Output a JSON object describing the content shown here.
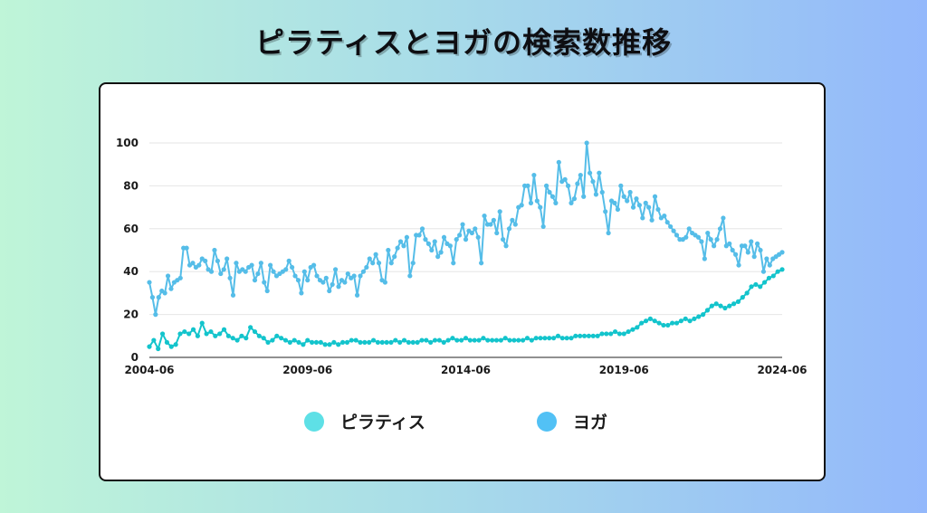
{
  "title": "ピラティスとヨガの検索数推移",
  "colors": {
    "pilates": "#13c4cc",
    "yoga": "#55bde8",
    "legend_pilates": "#5ee0e6",
    "legend_yoga": "#52c1f5"
  },
  "chart_data": {
    "type": "line",
    "title": "ピラティスとヨガの検索数推移",
    "xlabel": "",
    "ylabel": "",
    "ylim": [
      0,
      100
    ],
    "yticks": [
      "0",
      "20",
      "40",
      "60",
      "80",
      "100"
    ],
    "xticks": [
      "2004-06",
      "2009-06",
      "2014-06",
      "2019-06",
      "2024-06"
    ],
    "x_range": [
      "2004-06",
      "2024-06"
    ],
    "legend_position": "bottom",
    "series": [
      {
        "name": "ピラティス",
        "color_key": "pilates",
        "values": [
          5,
          8,
          4,
          11,
          7,
          5,
          6,
          11,
          12,
          11,
          13,
          10,
          16,
          11,
          12,
          10,
          11,
          13,
          10,
          9,
          8,
          10,
          9,
          14,
          12,
          10,
          9,
          7,
          8,
          10,
          9,
          8,
          7,
          8,
          7,
          6,
          8,
          7,
          7,
          7,
          6,
          6,
          7,
          6,
          7,
          7,
          8,
          8,
          7,
          7,
          7,
          8,
          7,
          7,
          7,
          7,
          8,
          7,
          8,
          7,
          7,
          7,
          8,
          8,
          7,
          8,
          8,
          7,
          8,
          9,
          8,
          8,
          9,
          8,
          8,
          8,
          9,
          8,
          8,
          8,
          8,
          9,
          8,
          8,
          8,
          8,
          9,
          8,
          9,
          9,
          9,
          9,
          9,
          10,
          9,
          9,
          9,
          10,
          10,
          10,
          10,
          10,
          10,
          11,
          11,
          11,
          12,
          11,
          11,
          12,
          13,
          14,
          16,
          17,
          18,
          17,
          16,
          15,
          15,
          16,
          16,
          17,
          18,
          17,
          18,
          19,
          20,
          22,
          24,
          25,
          24,
          23,
          24,
          25,
          26,
          28,
          30,
          33,
          34,
          33,
          35,
          37,
          38,
          40,
          41
        ]
      },
      {
        "name": "ヨガ",
        "color_key": "yoga",
        "values": [
          35,
          28,
          20,
          28,
          31,
          30,
          38,
          32,
          35,
          36,
          37,
          51,
          51,
          43,
          44,
          42,
          43,
          46,
          45,
          41,
          40,
          50,
          45,
          39,
          41,
          46,
          37,
          29,
          44,
          40,
          41,
          40,
          42,
          43,
          36,
          39,
          44,
          35,
          31,
          43,
          40,
          38,
          39,
          40,
          41,
          45,
          42,
          38,
          36,
          30,
          40,
          36,
          42,
          43,
          38,
          36,
          35,
          37,
          31,
          34,
          41,
          33,
          36,
          35,
          39,
          37,
          38,
          29,
          38,
          40,
          42,
          46,
          44,
          48,
          44,
          36,
          35,
          50,
          44,
          47,
          51,
          54,
          52,
          56,
          38,
          44,
          57,
          57,
          60,
          55,
          53,
          50,
          54,
          47,
          49,
          56,
          53,
          52,
          44,
          55,
          57,
          62,
          55,
          59,
          58,
          60,
          56,
          44,
          66,
          62,
          62,
          64,
          58,
          68,
          55,
          52,
          60,
          64,
          62,
          70,
          71,
          80,
          80,
          72,
          85,
          73,
          70,
          61,
          80,
          77,
          75,
          72,
          91,
          82,
          83,
          80,
          72,
          74,
          81,
          85,
          75,
          100,
          86,
          82,
          76,
          86,
          77,
          68,
          58,
          73,
          72,
          69,
          80,
          75,
          73,
          77,
          70,
          74,
          71,
          65,
          72,
          70,
          64,
          75,
          69,
          65,
          66,
          63,
          61,
          59,
          57,
          55,
          55,
          56,
          60,
          58,
          57,
          56,
          54,
          46,
          58,
          55,
          52,
          55,
          60,
          65,
          52,
          53,
          50,
          48,
          43,
          52,
          52,
          49,
          54,
          47,
          53,
          50,
          40,
          46,
          43,
          46,
          47,
          48,
          49
        ]
      }
    ]
  },
  "legend": {
    "items": [
      {
        "label": "ピラティス",
        "color_key": "legend_pilates"
      },
      {
        "label": "ヨガ",
        "color_key": "legend_yoga"
      }
    ]
  }
}
